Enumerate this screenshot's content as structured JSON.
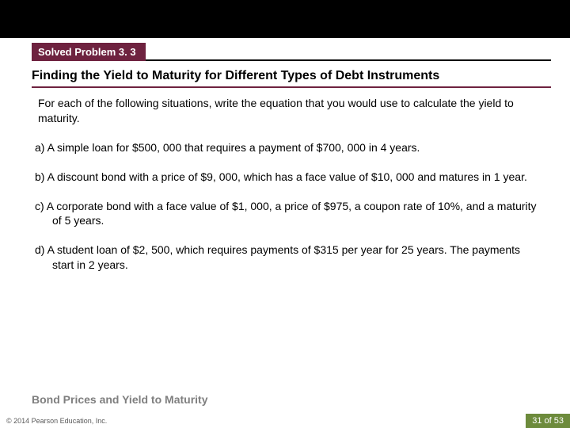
{
  "colors": {
    "badge_bg": "#6e223f",
    "badge_text": "#ffffff",
    "topbar_bg": "#000000",
    "title_underline": "#6e223f",
    "section_footer_text": "#7f7f7f",
    "page_chip_bg": "#6d8b3c",
    "page_chip_text": "#ffffff",
    "body_text": "#000000",
    "copyright_text": "#5a5a5a",
    "background": "#ffffff"
  },
  "typography": {
    "body_font": "Arial, Helvetica, sans-serif",
    "badge_fontsize": 13,
    "title_fontsize": 16,
    "body_fontsize": 14,
    "footer_fontsize": 14,
    "copyright_fontsize": 9,
    "chip_fontsize": 11
  },
  "badge": "Solved Problem 3. 3",
  "title": "Finding the Yield to Maturity for Different Types of Debt Instruments",
  "intro": "For each of the following situations, write the equation that you would use to calculate the yield to maturity.",
  "items": [
    "a)  A simple loan for $500, 000 that requires a payment of $700, 000 in 4 years.",
    "b)  A discount bond with a price of $9, 000, which has a face value of $10, 000 and matures in 1 year.",
    "c)  A corporate bond with a face value of $1, 000, a price of $975, a coupon rate of 10%, and a maturity of 5 years.",
    "d)  A student loan of $2, 500, which requires payments of $315 per year for 25 years. The payments start in 2 years."
  ],
  "section_footer": "Bond Prices and Yield to Maturity",
  "copyright": "© 2014 Pearson Education, Inc.",
  "page_chip": "31 of 53"
}
